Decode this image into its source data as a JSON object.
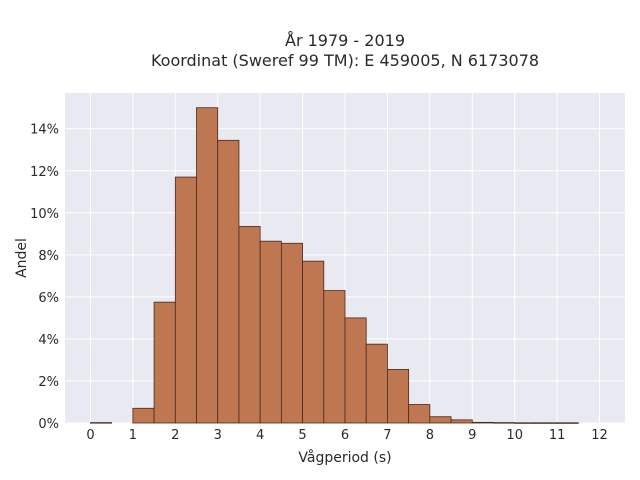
{
  "chart_data": {
    "type": "bar",
    "title_lines": [
      "År 1979 - 2019",
      "Koordinat (Sweref 99 TM): E 459005, N 6173078"
    ],
    "xlabel": "Vågperiod (s)",
    "ylabel": "Andel",
    "x_ticks": [
      "0",
      "1",
      "2",
      "3",
      "4",
      "5",
      "6",
      "7",
      "8",
      "9",
      "10",
      "11",
      "12"
    ],
    "y_ticks": [
      "0%",
      "2%",
      "4%",
      "6%",
      "8%",
      "10%",
      "12%",
      "14%"
    ],
    "xlim": [
      -0.6,
      12.6
    ],
    "ylim": [
      0,
      15.7
    ],
    "bin_width": 0.5,
    "bins": [
      {
        "start": 0.0,
        "value": 0.02
      },
      {
        "start": 1.0,
        "value": 0.7
      },
      {
        "start": 1.5,
        "value": 5.75
      },
      {
        "start": 2.0,
        "value": 11.7
      },
      {
        "start": 2.5,
        "value": 15.0
      },
      {
        "start": 3.0,
        "value": 13.45
      },
      {
        "start": 3.5,
        "value": 9.35
      },
      {
        "start": 4.0,
        "value": 8.65
      },
      {
        "start": 4.5,
        "value": 8.55
      },
      {
        "start": 5.0,
        "value": 7.7
      },
      {
        "start": 5.5,
        "value": 6.3
      },
      {
        "start": 6.0,
        "value": 5.0
      },
      {
        "start": 6.5,
        "value": 3.75
      },
      {
        "start": 7.0,
        "value": 2.55
      },
      {
        "start": 7.5,
        "value": 0.88
      },
      {
        "start": 8.0,
        "value": 0.3
      },
      {
        "start": 8.5,
        "value": 0.15
      },
      {
        "start": 9.0,
        "value": 0.03
      },
      {
        "start": 9.5,
        "value": 0.02
      },
      {
        "start": 10.0,
        "value": 0.01
      },
      {
        "start": 10.5,
        "value": 0.01
      },
      {
        "start": 11.0,
        "value": 0.01
      }
    ],
    "grid": true,
    "colors": {
      "bar_fill": "#bf7751",
      "bar_stroke": "#4a2a1c",
      "plot_background": "#e8e9f1",
      "grid": "#ffffff"
    }
  }
}
